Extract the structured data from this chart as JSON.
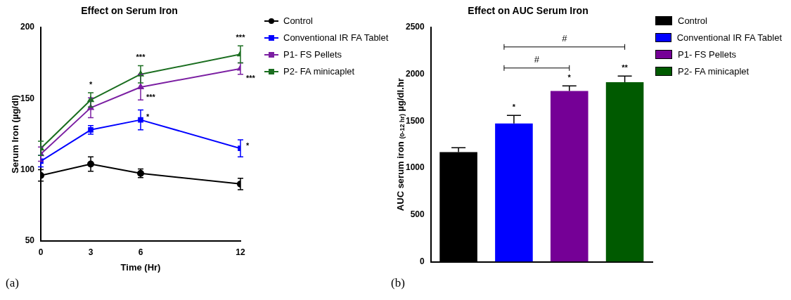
{
  "chart_data": [
    {
      "type": "line",
      "title": "Effect on Serum Iron",
      "xlabel": "Time (Hr)",
      "ylabel": "Serum Iron (µg/dl)",
      "x": [
        0,
        3,
        6,
        12
      ],
      "xlim": [
        0,
        12
      ],
      "xticks": [
        0,
        3,
        6,
        12
      ],
      "ylim": [
        50,
        200
      ],
      "yticks": [
        50,
        100,
        150,
        200
      ],
      "grid": false,
      "legend": "right",
      "line_style": "solid",
      "series": [
        {
          "name": "Control",
          "color": "#000000",
          "marker": "circle",
          "values": [
            96,
            104,
            97.5,
            90
          ],
          "errors": [
            4,
            5,
            3,
            4
          ]
        },
        {
          "name": "Conventional IR FA Tablet",
          "color": "#0000ff",
          "marker": "square",
          "values": [
            106,
            128,
            135,
            115
          ],
          "errors": [
            4,
            3,
            7,
            6
          ],
          "value_labels": [
            null,
            null,
            "*",
            "*"
          ]
        },
        {
          "name": "P1- FS Pellets",
          "color": "#7b1fa2",
          "marker": "triangle",
          "values": [
            111,
            143.5,
            158,
            171
          ],
          "errors": [
            5,
            7,
            9,
            4
          ],
          "value_labels": [
            null,
            null,
            "***",
            "***"
          ]
        },
        {
          "name": "P2- FA minicaplet",
          "color": "#1b6e20",
          "marker": "triangle",
          "values": [
            115,
            149,
            167,
            181
          ],
          "errors": [
            5,
            5,
            6,
            6
          ],
          "value_labels": [
            null,
            "*",
            "***",
            "***"
          ]
        }
      ],
      "annotations": [
        "(a)"
      ]
    },
    {
      "type": "bar",
      "title": "Effect on AUC Serum Iron",
      "ylabel": "AUC serum iron $_{(0-12 hr)}$ µg/dl.hr",
      "categories": [
        null,
        null,
        null,
        null
      ],
      "stacked": true,
      "ylim": [
        0,
        2500
      ],
      "yticks": [
        0,
        500,
        1000,
        1500,
        2000,
        2500
      ],
      "grid": false,
      "legend": "right",
      "series": [
        {
          "name": "Control",
          "color": "#000000",
          "values": [
            1170,
            null,
            null,
            null
          ],
          "errors": [
            45,
            null,
            null,
            null
          ]
        },
        {
          "name": "Conventional IR FA Tablet",
          "color": "#0000ff",
          "values": [
            null,
            1475,
            null,
            null
          ],
          "errors": [
            null,
            85,
            null,
            null
          ],
          "value_labels": [
            null,
            "*",
            null,
            null
          ]
        },
        {
          "name": "P1- FS Pellets",
          "color": "#750096",
          "values": [
            null,
            null,
            1820,
            null
          ],
          "errors": [
            null,
            null,
            55,
            null
          ],
          "value_labels": [
            null,
            null,
            "*",
            null
          ]
        },
        {
          "name": "P2- FA minicaplet",
          "color": "#005a00",
          "values": [
            null,
            null,
            null,
            1915
          ],
          "errors": [
            null,
            null,
            null,
            65
          ],
          "value_labels": [
            null,
            null,
            null,
            "**"
          ]
        }
      ],
      "annotations": [
        "#",
        "#",
        "(b)"
      ]
    }
  ]
}
